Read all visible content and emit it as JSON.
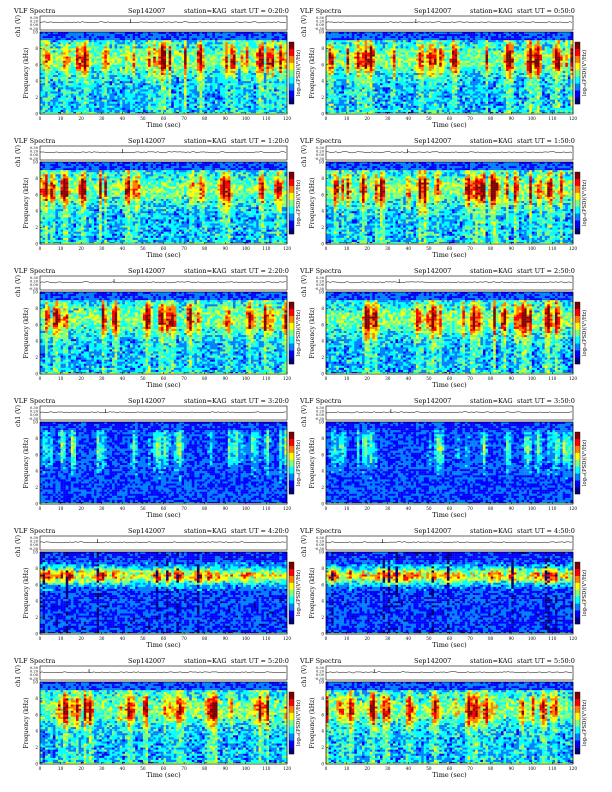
{
  "page": {
    "background": "#ffffff"
  },
  "panel_labels": {
    "ylabel_ch": "ch1 (V)",
    "ylabel_freq": "Frequency (kHz)",
    "xlabel": "Time (sec)",
    "colorbar_label": "log₁₀(PSD)(V²/Hz)"
  },
  "ch_ticks": [
    "0.30",
    "0.20",
    "0.00",
    "-0.30"
  ],
  "chart_data": [
    {
      "type": "heatmap",
      "title": "VLF Spectra",
      "date": "Sep142007",
      "station": "station=KAG",
      "start": "start UT = 0:20:0",
      "xlim": [
        0,
        120
      ],
      "ylim": [
        0,
        10
      ],
      "x_ticks": [
        0,
        10,
        20,
        30,
        40,
        50,
        60,
        70,
        80,
        90,
        100,
        110,
        120
      ],
      "y_ticks": [
        0,
        2,
        4,
        6,
        8,
        10
      ],
      "tone": "active",
      "seed": 11
    },
    {
      "type": "heatmap",
      "title": "VLF Spectra",
      "date": "Sep142007",
      "station": "station=KAG",
      "start": "start UT = 0:50:0",
      "xlim": [
        0,
        120
      ],
      "ylim": [
        0,
        10
      ],
      "x_ticks": [
        0,
        10,
        20,
        30,
        40,
        50,
        60,
        70,
        80,
        90,
        100,
        110,
        120
      ],
      "y_ticks": [
        0,
        2,
        4,
        6,
        8,
        10
      ],
      "tone": "active",
      "seed": 12
    },
    {
      "type": "heatmap",
      "title": "VLF Spectra",
      "date": "Sep142007",
      "station": "station=KAG",
      "start": "start UT = 1:20:0",
      "xlim": [
        0,
        120
      ],
      "ylim": [
        0,
        10
      ],
      "x_ticks": [
        0,
        10,
        20,
        30,
        40,
        50,
        60,
        70,
        80,
        90,
        100,
        110,
        120
      ],
      "y_ticks": [
        0,
        2,
        4,
        6,
        8,
        10
      ],
      "tone": "active",
      "seed": 21
    },
    {
      "type": "heatmap",
      "title": "VLF Spectra",
      "date": "Sep142007",
      "station": "station=KAG",
      "start": "start UT = 1:50:0",
      "xlim": [
        0,
        120
      ],
      "ylim": [
        0,
        10
      ],
      "x_ticks": [
        0,
        10,
        20,
        30,
        40,
        50,
        60,
        70,
        80,
        90,
        100,
        110,
        120
      ],
      "y_ticks": [
        0,
        2,
        4,
        6,
        8,
        10
      ],
      "tone": "active",
      "seed": 22
    },
    {
      "type": "heatmap",
      "title": "VLF Spectra",
      "date": "Sep142007",
      "station": "station=KAG",
      "start": "start UT = 2:20:0",
      "xlim": [
        0,
        120
      ],
      "ylim": [
        0,
        10
      ],
      "x_ticks": [
        0,
        10,
        20,
        30,
        40,
        50,
        60,
        70,
        80,
        90,
        100,
        110,
        120
      ],
      "y_ticks": [
        0,
        2,
        4,
        6,
        8,
        10
      ],
      "tone": "active",
      "seed": 31
    },
    {
      "type": "heatmap",
      "title": "VLF Spectra",
      "date": "Sep142007",
      "station": "station=KAG",
      "start": "start UT = 2:50:0",
      "xlim": [
        0,
        120
      ],
      "ylim": [
        0,
        10
      ],
      "x_ticks": [
        0,
        10,
        20,
        30,
        40,
        50,
        60,
        70,
        80,
        90,
        100,
        110,
        120
      ],
      "y_ticks": [
        0,
        2,
        4,
        6,
        8,
        10
      ],
      "tone": "active",
      "seed": 32
    },
    {
      "type": "heatmap",
      "title": "VLF Spectra",
      "date": "Sep142007",
      "station": "station=KAG",
      "start": "start UT = 3:20:0",
      "xlim": [
        0,
        120
      ],
      "ylim": [
        0,
        10
      ],
      "x_ticks": [
        0,
        10,
        20,
        30,
        40,
        50,
        60,
        70,
        80,
        90,
        100,
        110,
        120
      ],
      "y_ticks": [
        0,
        2,
        4,
        6,
        8,
        10
      ],
      "tone": "quiet",
      "seed": 41
    },
    {
      "type": "heatmap",
      "title": "VLF Spectra",
      "date": "Sep142007",
      "station": "station=KAG",
      "start": "start UT = 3:50:0",
      "xlim": [
        0,
        120
      ],
      "ylim": [
        0,
        10
      ],
      "x_ticks": [
        0,
        10,
        20,
        30,
        40,
        50,
        60,
        70,
        80,
        90,
        100,
        110,
        120
      ],
      "y_ticks": [
        0,
        2,
        4,
        6,
        8,
        10
      ],
      "tone": "quiet",
      "seed": 42
    },
    {
      "type": "heatmap",
      "title": "VLF Spectra",
      "date": "Sep142007",
      "station": "station=KAG",
      "start": "start UT = 4:20:0",
      "xlim": [
        0,
        120
      ],
      "ylim": [
        0,
        10
      ],
      "x_ticks": [
        0,
        10,
        20,
        30,
        40,
        50,
        60,
        70,
        80,
        90,
        100,
        110,
        120
      ],
      "y_ticks": [
        0,
        2,
        4,
        6,
        8,
        10
      ],
      "tone": "banded",
      "seed": 51
    },
    {
      "type": "heatmap",
      "title": "VLF Spectra",
      "date": "Sep142007",
      "station": "station=KAG",
      "start": "start UT = 4:50:0",
      "xlim": [
        0,
        120
      ],
      "ylim": [
        0,
        10
      ],
      "x_ticks": [
        0,
        10,
        20,
        30,
        40,
        50,
        60,
        70,
        80,
        90,
        100,
        110,
        120
      ],
      "y_ticks": [
        0,
        2,
        4,
        6,
        8,
        10
      ],
      "tone": "banded",
      "seed": 52
    },
    {
      "type": "heatmap",
      "title": "VLF Spectra",
      "date": "Sep142007",
      "station": "station=KAG",
      "start": "start UT = 5:20:0",
      "xlim": [
        0,
        120
      ],
      "ylim": [
        0,
        10
      ],
      "x_ticks": [
        0,
        10,
        20,
        30,
        40,
        50,
        60,
        70,
        80,
        90,
        100,
        110,
        120
      ],
      "y_ticks": [
        0,
        2,
        4,
        6,
        8,
        10
      ],
      "tone": "active",
      "seed": 61
    },
    {
      "type": "heatmap",
      "title": "VLF Spectra",
      "date": "Sep142007",
      "station": "station=KAG",
      "start": "start UT = 5:50:0",
      "xlim": [
        0,
        120
      ],
      "ylim": [
        0,
        10
      ],
      "x_ticks": [
        0,
        10,
        20,
        30,
        40,
        50,
        60,
        70,
        80,
        90,
        100,
        110,
        120
      ],
      "y_ticks": [
        0,
        2,
        4,
        6,
        8,
        10
      ],
      "tone": "active",
      "seed": 62
    }
  ],
  "colormap": [
    "#00007f",
    "#0000ff",
    "#007fff",
    "#00ffff",
    "#7fff7f",
    "#ffff00",
    "#ff7f00",
    "#ff0000",
    "#7f0000"
  ]
}
